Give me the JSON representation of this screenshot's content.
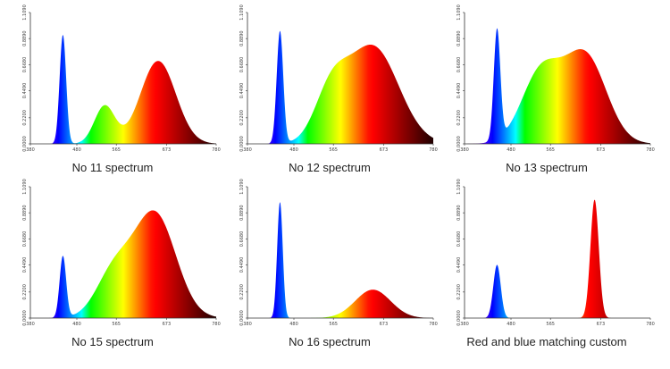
{
  "palette": {
    "text": "#222222",
    "axis": "#333333",
    "tick_text": "#444444"
  },
  "chart_data": [
    {
      "type": "area",
      "title": "No 11 spectrum",
      "x_ticks": [
        "380",
        "480",
        "565",
        "673",
        "780"
      ],
      "y_ticks": [
        "0.0000",
        "0.2200",
        "0.4490",
        "0.6680",
        "0.8890",
        "1.1090"
      ],
      "xlim": [
        380,
        780
      ],
      "ylim": [
        0,
        1.109
      ],
      "peaks": [
        {
          "center": 450,
          "height": 0.92,
          "width": 7
        },
        {
          "center": 540,
          "height": 0.32,
          "width": 22
        },
        {
          "center": 655,
          "height": 0.7,
          "width": 38
        }
      ]
    },
    {
      "type": "area",
      "title": "No 12 spectrum",
      "x_ticks": [
        "380",
        "480",
        "565",
        "673",
        "780"
      ],
      "y_ticks": [
        "0.0000",
        "0.2200",
        "0.4490",
        "0.6680",
        "0.8890",
        "1.1090"
      ],
      "xlim": [
        380,
        780
      ],
      "ylim": [
        0,
        1.109
      ],
      "peaks": [
        {
          "center": 450,
          "height": 0.95,
          "width": 7
        },
        {
          "center": 560,
          "height": 0.4,
          "width": 35
        },
        {
          "center": 650,
          "height": 0.82,
          "width": 55
        }
      ]
    },
    {
      "type": "area",
      "title": "No 13 spectrum",
      "x_ticks": [
        "380",
        "480",
        "565",
        "673",
        "780"
      ],
      "y_ticks": [
        "0.0000",
        "0.2200",
        "0.4490",
        "0.6680",
        "0.8890",
        "1.1090"
      ],
      "xlim": [
        380,
        780
      ],
      "ylim": [
        0,
        1.109
      ],
      "peaks": [
        {
          "center": 450,
          "height": 0.93,
          "width": 7
        },
        {
          "center": 545,
          "height": 0.6,
          "width": 42
        },
        {
          "center": 640,
          "height": 0.74,
          "width": 45
        }
      ]
    },
    {
      "type": "area",
      "title": "No 15 spectrum",
      "x_ticks": [
        "380",
        "480",
        "565",
        "673",
        "780"
      ],
      "y_ticks": [
        "0.0000",
        "0.2200",
        "0.4490",
        "0.6680",
        "0.8890",
        "1.1090"
      ],
      "xlim": [
        380,
        780
      ],
      "ylim": [
        0,
        1.109
      ],
      "peaks": [
        {
          "center": 450,
          "height": 0.52,
          "width": 7
        },
        {
          "center": 560,
          "height": 0.38,
          "width": 38
        },
        {
          "center": 648,
          "height": 0.88,
          "width": 45
        }
      ]
    },
    {
      "type": "area",
      "title": "No 16 spectrum",
      "x_ticks": [
        "380",
        "480",
        "565",
        "673",
        "780"
      ],
      "y_ticks": [
        "0.0000",
        "0.2200",
        "0.4490",
        "0.6680",
        "0.8890",
        "1.1090"
      ],
      "xlim": [
        380,
        780
      ],
      "ylim": [
        0,
        1.109
      ],
      "peaks": [
        {
          "center": 450,
          "height": 0.98,
          "width": 6
        },
        {
          "center": 650,
          "height": 0.24,
          "width": 38
        }
      ]
    },
    {
      "type": "area",
      "title": "Red and blue matching custom",
      "x_ticks": [
        "380",
        "480",
        "565",
        "673",
        "780"
      ],
      "y_ticks": [
        "0.0000",
        "0.2200",
        "0.4490",
        "0.6680",
        "0.8890",
        "1.1090"
      ],
      "xlim": [
        380,
        780
      ],
      "ylim": [
        0,
        1.109
      ],
      "peaks": [
        {
          "center": 450,
          "height": 0.45,
          "width": 8
        },
        {
          "center": 660,
          "height": 1.0,
          "width": 9
        }
      ]
    }
  ]
}
